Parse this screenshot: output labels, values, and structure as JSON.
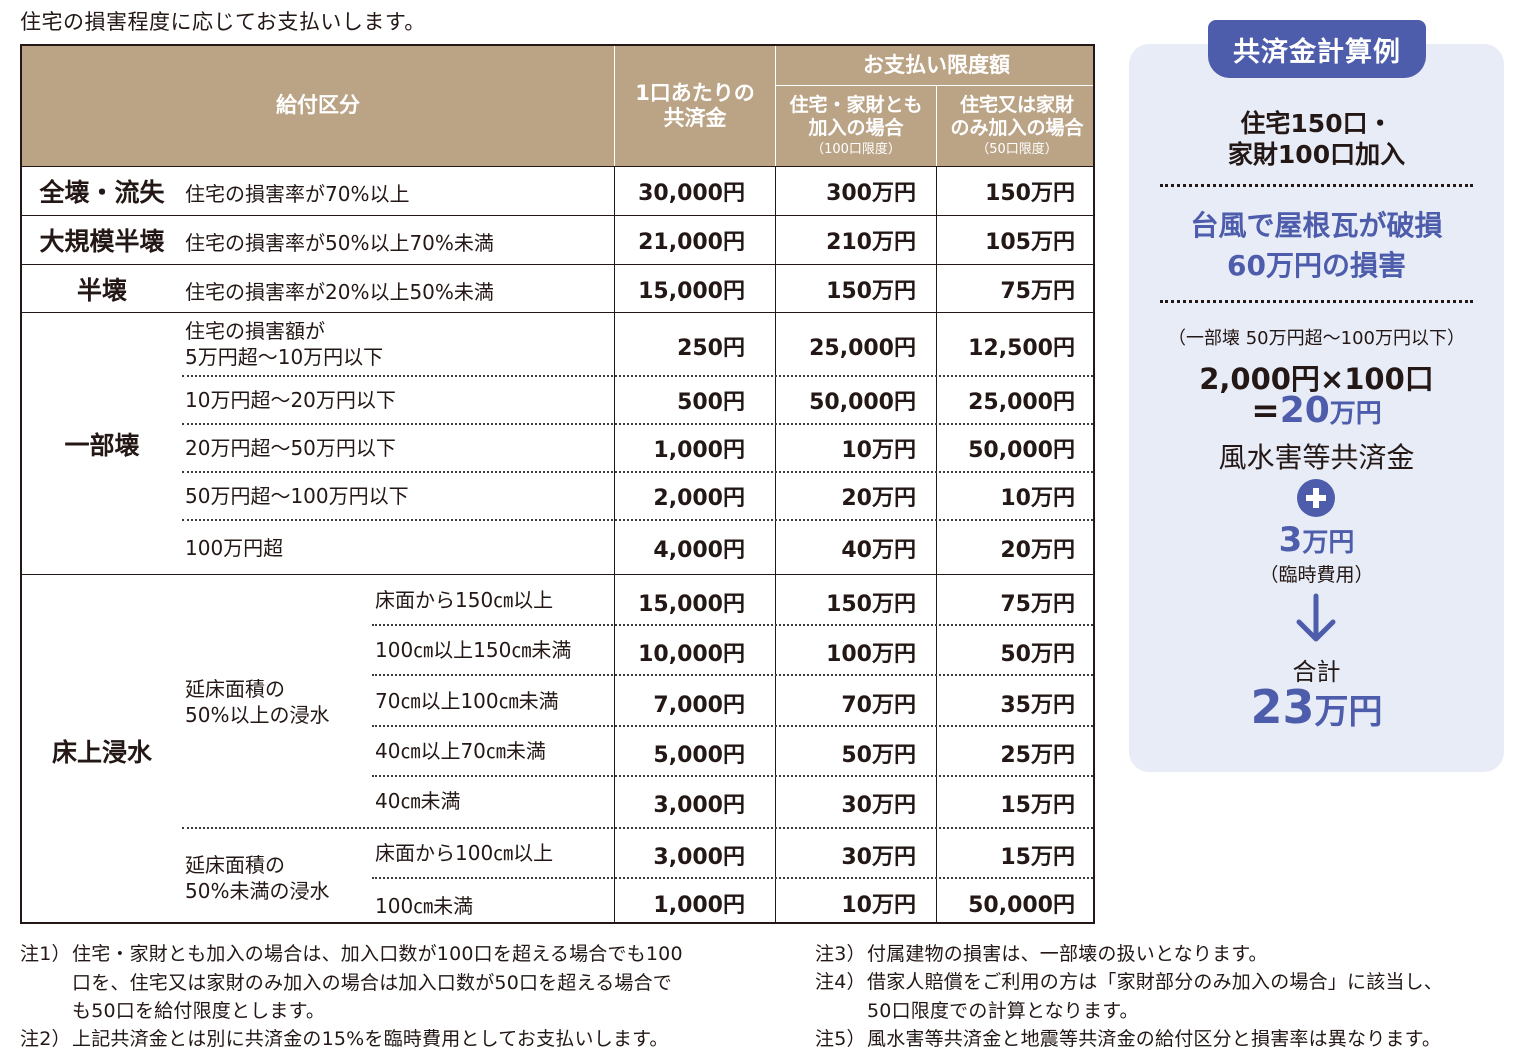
{
  "intro": "住宅の損害程度に応じてお支払いします。",
  "header": {
    "category": "給付区分",
    "per_unit_line1": "1口あたりの",
    "per_unit_line2": "共済金",
    "limit": "お支払い限度額",
    "both_line1": "住宅・家財とも",
    "both_line2": "加入の場合",
    "both_note": "（100口限度）",
    "single_line1": "住宅又は家財",
    "single_line2": "のみ加入の場合",
    "single_note": "（50口限度）"
  },
  "rows": {
    "zenkai": {
      "category": "全壊・流失",
      "desc": "住宅の損害率が70%以上",
      "per_unit": "30,000円",
      "both": "300万円",
      "single": "150万円"
    },
    "daikibo": {
      "category": "大規模半壊",
      "desc": "住宅の損害率が50%以上70%未満",
      "per_unit": "21,000円",
      "both": "210万円",
      "single": "105万円"
    },
    "hankai": {
      "category": "半壊",
      "desc": "住宅の損害率が20%以上50%未満",
      "per_unit": "15,000円",
      "both": "150万円",
      "single": "75万円"
    }
  },
  "ichibu": {
    "category": "一部壊",
    "rows": [
      {
        "desc_line1": "住宅の損害額が",
        "desc_line2": "5万円超〜10万円以下",
        "per_unit": "250円",
        "both": "25,000円",
        "single": "12,500円"
      },
      {
        "desc": "10万円超〜20万円以下",
        "per_unit": "500円",
        "both": "50,000円",
        "single": "25,000円"
      },
      {
        "desc": "20万円超〜50万円以下",
        "per_unit": "1,000円",
        "both": "10万円",
        "single": "50,000円"
      },
      {
        "desc": "50万円超〜100万円以下",
        "per_unit": "2,000円",
        "both": "20万円",
        "single": "10万円"
      },
      {
        "desc": "100万円超",
        "per_unit": "4,000円",
        "both": "40万円",
        "single": "20万円"
      }
    ]
  },
  "shinsui": {
    "category": "床上浸水",
    "group1": "延床面積の\n50%以上の浸水",
    "group1_line1": "延床面積の",
    "group1_line2": "50%以上の浸水",
    "group2_line1": "延床面積の",
    "group2_line2": "50%未満の浸水",
    "rows": [
      {
        "desc": "床面から150㎝以上",
        "per_unit": "15,000円",
        "both": "150万円",
        "single": "75万円"
      },
      {
        "desc": "100㎝以上150㎝未満",
        "per_unit": "10,000円",
        "both": "100万円",
        "single": "50万円"
      },
      {
        "desc": "70㎝以上100㎝未満",
        "per_unit": "7,000円",
        "both": "70万円",
        "single": "35万円"
      },
      {
        "desc": "40㎝以上70㎝未満",
        "per_unit": "5,000円",
        "both": "50万円",
        "single": "25万円"
      },
      {
        "desc": "40㎝未満",
        "per_unit": "3,000円",
        "both": "30万円",
        "single": "15万円"
      },
      {
        "desc": "床面から100㎝以上",
        "per_unit": "3,000円",
        "both": "30万円",
        "single": "15万円"
      },
      {
        "desc": "100㎝未満",
        "per_unit": "1,000円",
        "both": "10万円",
        "single": "50,000円"
      }
    ]
  },
  "example": {
    "title": "共済金計算例",
    "join_line1": "住宅150口・",
    "join_line2": "家財100口加入",
    "case_line1": "台風で屋根瓦が破損",
    "case_line2": "60万円の損害",
    "class_note": "（一部壊 50万円超〜100万円以下）",
    "calc": "2,000円×100口",
    "result_eq": "=",
    "result_num": "20",
    "result_unit": "万円",
    "result_label": "風水害等共済金",
    "extra_num": "3",
    "extra_unit": "万円",
    "extra_label": "（臨時費用）",
    "total_label": "合計",
    "total_num": "23",
    "total_unit": "万円"
  },
  "notes": {
    "n1_label": "注1）",
    "n1_line1": "住宅・家財とも加入の場合は、加入口数が100口を超える場合でも100",
    "n1_line2": "口を、住宅又は家財のみ加入の場合は加入口数が50口を超える場合で",
    "n1_line3": "も50口を給付限度とします。",
    "n2_label": "注2）",
    "n2_line1": "上記共済金とは別に共済金の15%を臨時費用としてお支払いします。",
    "n3_label": "注3）",
    "n3_line1": "付属建物の損害は、一部壊の扱いとなります。",
    "n4_label": "注4）",
    "n4_line1": "借家人賠償をご利用の方は「家財部分のみ加入の場合」に該当し、",
    "n4_line2": "50口限度での計算となります。",
    "n5_label": "注5）",
    "n5_line1": "風水害等共済金と地震等共済金の給付区分と損害率は異なります。"
  },
  "colors": {
    "header_bg": "#bba486",
    "accent_blue": "#4d5cab",
    "panel_bg": "#e8ecf7"
  }
}
